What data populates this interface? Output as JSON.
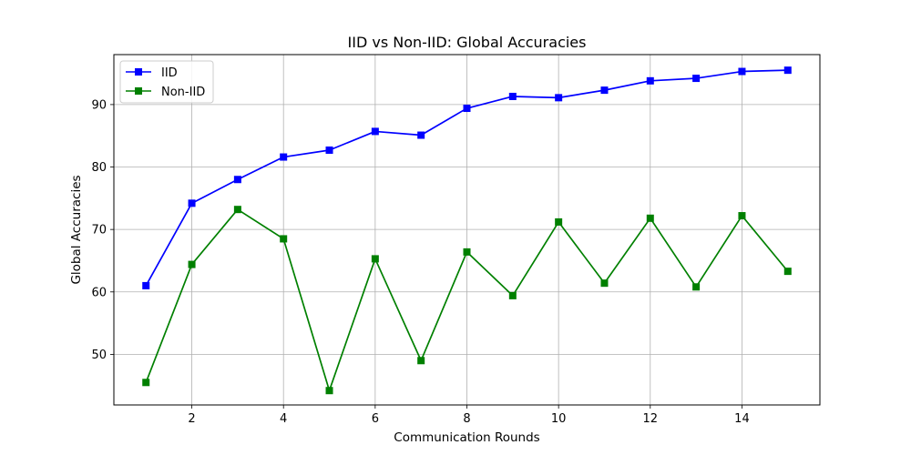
{
  "chart_data": {
    "type": "line",
    "title": "IID vs Non-IID: Global Accuracies",
    "xlabel": "Communication Rounds",
    "ylabel": "Global Accuracies",
    "x": [
      1,
      2,
      3,
      4,
      5,
      6,
      7,
      8,
      9,
      10,
      11,
      12,
      13,
      14,
      15
    ],
    "xticks": [
      2,
      4,
      6,
      8,
      10,
      12,
      14
    ],
    "yticks": [
      50,
      60,
      70,
      80,
      90
    ],
    "xlim": [
      0.3,
      15.7
    ],
    "ylim": [
      41.9,
      98.0
    ],
    "grid": true,
    "legend_position": "upper-left",
    "series": [
      {
        "name": "IID",
        "color": "#0000ff",
        "marker": "square",
        "values": [
          61.0,
          74.2,
          78.0,
          81.6,
          82.7,
          85.7,
          85.1,
          89.4,
          91.3,
          91.1,
          92.3,
          93.8,
          94.2,
          95.3,
          95.5
        ]
      },
      {
        "name": "Non-IID",
        "color": "#008000",
        "marker": "square",
        "values": [
          45.5,
          64.4,
          73.2,
          68.5,
          44.2,
          65.3,
          49.0,
          66.4,
          59.4,
          71.2,
          61.4,
          71.8,
          60.8,
          72.2,
          63.3
        ]
      }
    ]
  }
}
